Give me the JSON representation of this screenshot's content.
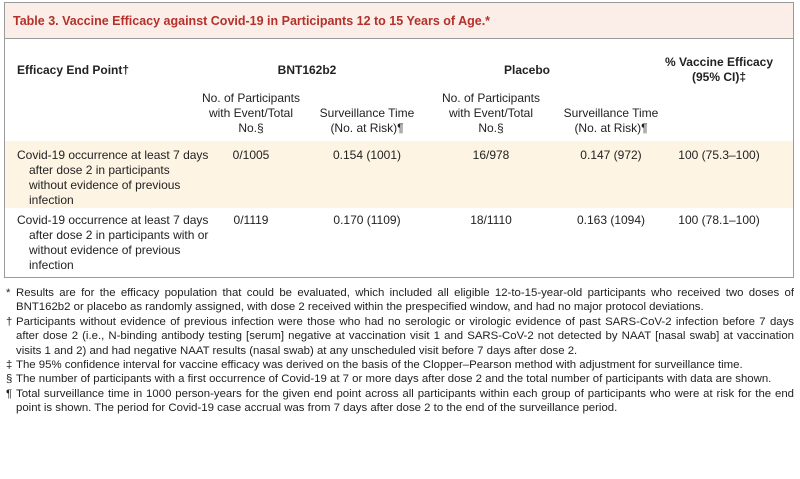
{
  "title": "Table 3. Vaccine Efficacy against Covid-19 in Participants 12 to 15 Years of Age.*",
  "table": {
    "header": {
      "end_point": "Efficacy End Point†",
      "group1": "BNT162b2",
      "group2": "Placebo",
      "efficacy": "% Vaccine Efficacy (95% CI)‡"
    },
    "subheaders": [
      "No. of Participants with Event/Total No.§",
      "Surveillance Time (No. at Risk)¶",
      "No. of Participants with Event/Total No.§",
      "Surveillance Time (No. at Risk)¶"
    ],
    "rows": [
      [
        "Covid-19 occurrence at least 7 days after dose 2 in participants without evidence of previous infection",
        "0/1005",
        "0.154 (1001)",
        "16/978",
        "0.147 (972)",
        "100 (75.3–100)"
      ],
      [
        "Covid-19 occurrence at least 7 days after dose 2 in participants with or without evidence of previous infection",
        "0/1119",
        "0.170 (1109)",
        "18/1110",
        "0.163 (1094)",
        "100 (78.1–100)"
      ]
    ]
  },
  "footnotes": [
    {
      "symbol": "*",
      "text": "Results are for the efficacy population that could be evaluated, which included all eligible 12-to-15-year-old participants who received two doses of BNT162b2 or placebo as randomly assigned, with dose 2 received within the prespecified window, and had no major protocol deviations."
    },
    {
      "symbol": "†",
      "text": "Participants without evidence of previous infection were those who had no serologic or virologic evidence of past SARS-CoV-2 infection before 7 days after dose 2 (i.e., N-binding antibody testing [serum] negative at vaccination visit 1 and SARS-CoV-2 not detected by NAAT [nasal swab] at vaccination visits 1 and 2) and had negative NAAT results (nasal swab) at any unscheduled visit before 7 days after dose 2."
    },
    {
      "symbol": "‡",
      "text": "The 95% confidence interval for vaccine efficacy was derived on the basis of the Clopper–Pearson method with adjustment for surveillance time."
    },
    {
      "symbol": "§",
      "text": "The number of participants with a first occurrence of Covid-19 at 7 or more days after dose 2 and the total number of participants with data are shown."
    },
    {
      "symbol": "¶",
      "text": "Total surveillance time in 1000 person-years for the given end point across all participants within each group of participants who were at risk for the end point is shown. The period for Covid-19 case accrual was from 7 days after dose 2 to the end of the surveillance period."
    }
  ]
}
